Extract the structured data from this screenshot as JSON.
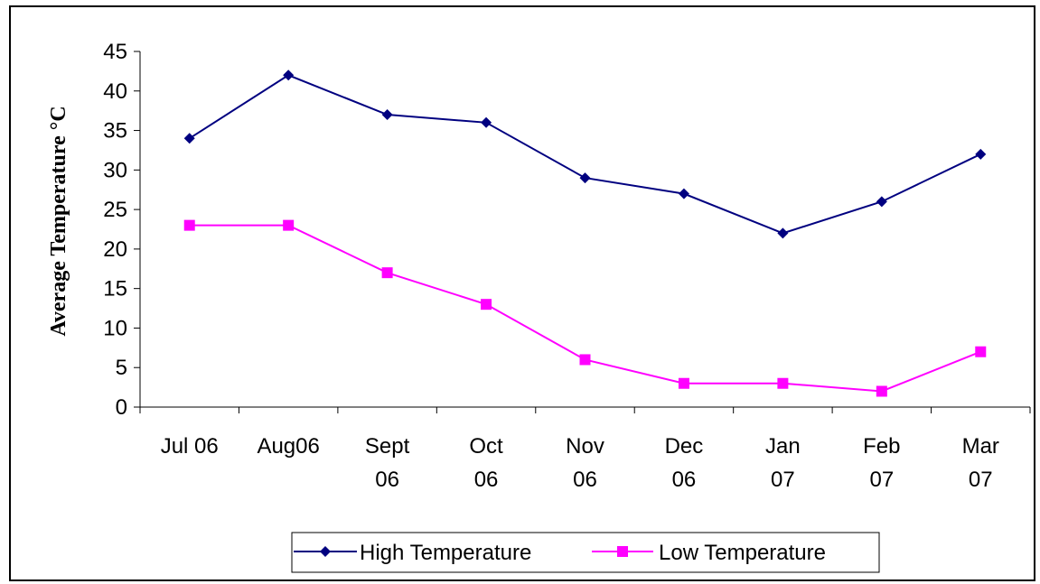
{
  "chart_data": {
    "type": "line",
    "title": "",
    "xlabel": "",
    "ylabel": "Average Temperature °C",
    "categories": [
      [
        "Jul 06"
      ],
      [
        "Aug06"
      ],
      [
        "Sept",
        "06"
      ],
      [
        "Oct",
        "06"
      ],
      [
        "Nov",
        "06"
      ],
      [
        "Dec",
        "06"
      ],
      [
        "Jan",
        "07"
      ],
      [
        "Feb",
        "07"
      ],
      [
        "Mar",
        "07"
      ]
    ],
    "ylim": [
      0,
      45
    ],
    "yticks": [
      0,
      5,
      10,
      15,
      20,
      25,
      30,
      35,
      40,
      45
    ],
    "grid": false,
    "legend_position": "bottom",
    "series": [
      {
        "name": "High Temperature",
        "color": "#000080",
        "marker": "diamond",
        "values": [
          34,
          42,
          37,
          36,
          29,
          27,
          22,
          26,
          32
        ]
      },
      {
        "name": "Low Temperature",
        "color": "#ff00ff",
        "marker": "square",
        "values": [
          23,
          23,
          17,
          13,
          6,
          3,
          3,
          2,
          7
        ]
      }
    ]
  }
}
